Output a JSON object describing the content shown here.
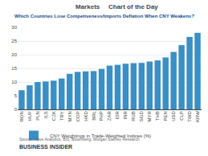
{
  "chart_data": {
    "type": "bar",
    "title": "Markets",
    "subtitle": "Which Countries Lose Competiveness/Imports Deflation When CNY Weakens?",
    "annotations": [
      "Chart of the Day",
      "Source: Have Analytics, BIS, Bloomberg, Morgan Stanley Research",
      "BUSINESS INSIDER"
    ],
    "categories": [
      "RON",
      "HUF",
      "PLN",
      "ILS",
      "CZK",
      "TRY",
      "MXN",
      "COP",
      "HKD",
      "BRL",
      "PHP",
      "ZAR",
      "IDR",
      "INR",
      "RUB",
      "SGD",
      "MYR",
      "THB",
      "PEN",
      "USD",
      "CLP",
      "TWD",
      "KRW"
    ],
    "series": [
      {
        "name": "CNY Weightings in Trade-Weighted Indices (%)",
        "color": "#3a8fc4",
        "values": [
          7.0,
          8.8,
          10.0,
          10.2,
          10.5,
          11.3,
          13.0,
          13.7,
          13.9,
          14.0,
          14.8,
          16.0,
          16.3,
          16.7,
          16.9,
          17.0,
          17.5,
          17.9,
          19.0,
          21.0,
          23.5,
          26.5,
          28.0
        ]
      }
    ],
    "ylim": [
      0,
      30
    ],
    "yticks": [
      0,
      5,
      10,
      15,
      20,
      25,
      30
    ],
    "grid": true,
    "legend": "bottom"
  }
}
